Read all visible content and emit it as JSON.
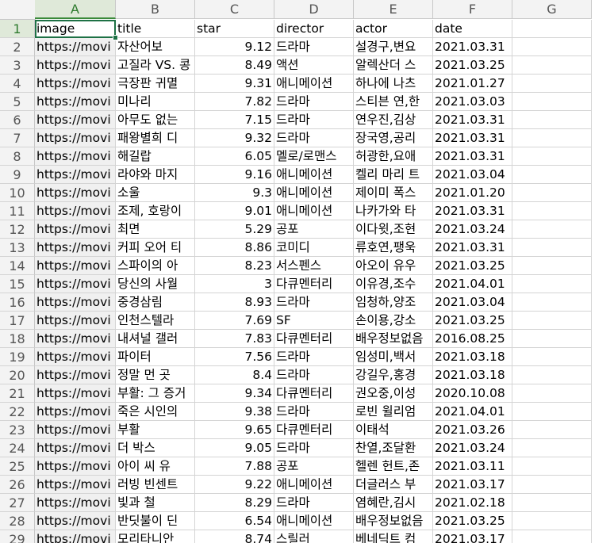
{
  "columns": [
    "A",
    "B",
    "C",
    "D",
    "E",
    "F",
    "G"
  ],
  "selected_column": "A",
  "selected_row": "1",
  "header_row": {
    "row": "1",
    "cells": [
      "image",
      "title",
      "star",
      "director",
      "actor",
      "date"
    ]
  },
  "rows": [
    {
      "row": "2",
      "cells": [
        "https://movi",
        "자산어보",
        "9.12",
        "드라마",
        "설경구,변요",
        "2021.03.31"
      ]
    },
    {
      "row": "3",
      "cells": [
        "https://movi",
        "고질라 VS. 콩",
        "8.49",
        "액션",
        "알렉산더 스",
        "2021.03.25"
      ]
    },
    {
      "row": "4",
      "cells": [
        "https://movi",
        "극장판 귀멸",
        "9.31",
        "애니메이션",
        "하나에 나츠",
        "2021.01.27"
      ]
    },
    {
      "row": "5",
      "cells": [
        "https://movi",
        "미나리",
        "7.82",
        "드라마",
        "스티븐 연,한",
        "2021.03.03"
      ]
    },
    {
      "row": "6",
      "cells": [
        "https://movi",
        "아무도 없는",
        "7.15",
        "드라마",
        "연우진,김상",
        "2021.03.31"
      ]
    },
    {
      "row": "7",
      "cells": [
        "https://movi",
        "패왕별희 디",
        "9.32",
        "드라마",
        "장국영,공리",
        "2021.03.31"
      ]
    },
    {
      "row": "8",
      "cells": [
        "https://movi",
        "해길랍",
        "6.05",
        "멜로/로맨스",
        "허광한,요애",
        "2021.03.31"
      ]
    },
    {
      "row": "9",
      "cells": [
        "https://movi",
        "라야와 마지",
        "9.16",
        "애니메이션",
        "켈리 마리 트",
        "2021.03.04"
      ]
    },
    {
      "row": "10",
      "cells": [
        "https://movi",
        "소울",
        "9.3",
        "애니메이션",
        "제이미 폭스",
        "2021.01.20"
      ]
    },
    {
      "row": "11",
      "cells": [
        "https://movi",
        "조제, 호랑이",
        "9.01",
        "애니메이션",
        "나카가와 타",
        "2021.03.31"
      ]
    },
    {
      "row": "12",
      "cells": [
        "https://movi",
        "최면",
        "5.29",
        "공포",
        "이다윗,조현",
        "2021.03.24"
      ]
    },
    {
      "row": "13",
      "cells": [
        "https://movi",
        "커피 오어 티",
        "8.86",
        "코미디",
        "류호연,팽욱",
        "2021.03.31"
      ]
    },
    {
      "row": "14",
      "cells": [
        "https://movi",
        "스파이의 아",
        "8.23",
        "서스펜스",
        "아오이 유우",
        "2021.03.25"
      ]
    },
    {
      "row": "15",
      "cells": [
        "https://movi",
        "당신의 사월",
        "3",
        "다큐멘터리",
        "이유경,조수",
        "2021.04.01"
      ]
    },
    {
      "row": "16",
      "cells": [
        "https://movi",
        "중경삼림",
        "8.93",
        "드라마",
        "임청하,양조",
        "2021.03.04"
      ]
    },
    {
      "row": "17",
      "cells": [
        "https://movi",
        "인천스텔라",
        "7.69",
        "SF",
        "손이용,강소",
        "2021.03.25"
      ]
    },
    {
      "row": "18",
      "cells": [
        "https://movi",
        "내셔널 갤러",
        "7.83",
        "다큐멘터리",
        "배우정보없음",
        "2016.08.25"
      ]
    },
    {
      "row": "19",
      "cells": [
        "https://movi",
        "파이터",
        "7.56",
        "드라마",
        "임성미,백서",
        "2021.03.18"
      ]
    },
    {
      "row": "20",
      "cells": [
        "https://movi",
        "정말 먼 곳",
        "8.4",
        "드라마",
        "강길우,홍경",
        "2021.03.18"
      ]
    },
    {
      "row": "21",
      "cells": [
        "https://movi",
        "부활: 그 증거",
        "9.34",
        "다큐멘터리",
        "권오중,이성",
        "2020.10.08"
      ]
    },
    {
      "row": "22",
      "cells": [
        "https://movi",
        "죽은 시인의",
        "9.38",
        "드라마",
        "로빈 윌리엄",
        "2021.04.01"
      ]
    },
    {
      "row": "23",
      "cells": [
        "https://movi",
        "부활",
        "9.65",
        "다큐멘터리",
        "이태석",
        "2021.03.26"
      ]
    },
    {
      "row": "24",
      "cells": [
        "https://movi",
        "더 박스",
        "9.05",
        "드라마",
        "찬열,조달환",
        "2021.03.24"
      ]
    },
    {
      "row": "25",
      "cells": [
        "https://movi",
        "아이 씨 유",
        "7.88",
        "공포",
        "헬렌 헌트,존",
        "2021.03.11"
      ]
    },
    {
      "row": "26",
      "cells": [
        "https://movi",
        "러빙 빈센트",
        "9.22",
        "애니메이션",
        "더글러스 부",
        "2021.03.17"
      ]
    },
    {
      "row": "27",
      "cells": [
        "https://movi",
        "빛과 철",
        "8.29",
        "드라마",
        "염혜란,김시",
        "2021.02.18"
      ]
    },
    {
      "row": "28",
      "cells": [
        "https://movi",
        "반딧불이 딘",
        "6.54",
        "애니메이션",
        "배우정보없음",
        "2021.03.25"
      ]
    },
    {
      "row": "29",
      "cells": [
        "https://movi",
        "모리타니안",
        "8.74",
        "스릴러",
        "베네딕트 컴",
        "2021.03.17"
      ]
    }
  ],
  "colors": {
    "accent": "#1e7145",
    "header_bg": "#f3f3f3",
    "selected_header_bg": "#dfe9d9",
    "grid": "#d4d4d4"
  }
}
